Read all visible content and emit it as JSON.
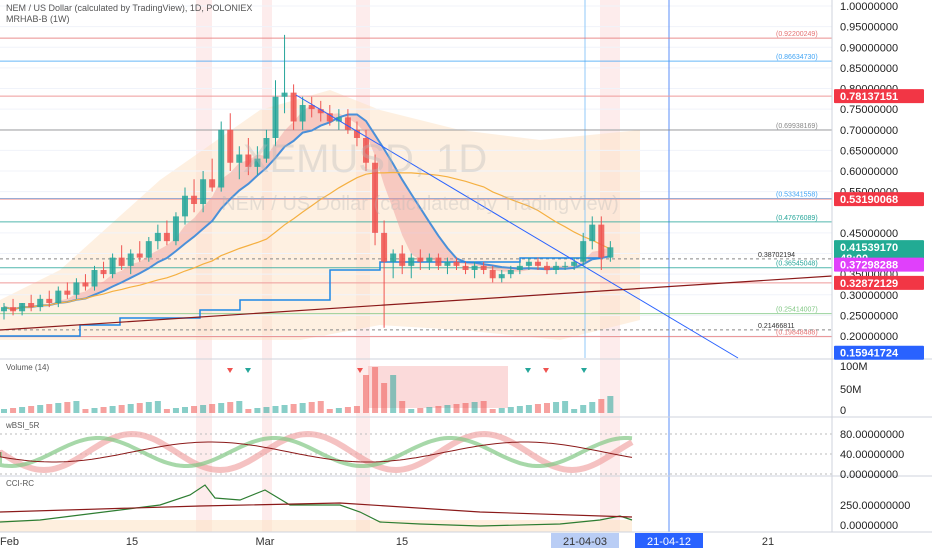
{
  "header": {
    "line1": "NEM / US Dollar (calculated by TradingView), 1D, POLONIEX",
    "line2": "MRHAB-B (1W)"
  },
  "watermark": {
    "symbol": "XEMUSD, 1D",
    "name": "NEM / US Dollar (calculated by TradingView)"
  },
  "colors": {
    "up": "#26a69a",
    "down": "#ef5350",
    "badge_red": "#f23645",
    "badge_teal": "#22ab94",
    "badge_magenta": "#e040fb",
    "badge_blue": "#2962ff",
    "date_badge": "#a9c4ff"
  },
  "chart_data": {
    "type": "candlestick",
    "price_axis_ticks": [
      "1.00000000",
      "0.95000000",
      "0.90000000",
      "0.85000000",
      "0.80000000",
      "0.75000000",
      "0.70000000",
      "0.65000000",
      "0.60000000",
      "0.55000000",
      "0.45000000",
      "0.40000000",
      "0.35000000",
      "0.30000000",
      "0.25000000",
      "0.20000000"
    ],
    "price_tick_values": [
      1.0,
      0.95,
      0.9,
      0.85,
      0.8,
      0.75,
      0.7,
      0.65,
      0.6,
      0.55,
      0.45,
      0.4,
      0.35,
      0.3,
      0.25,
      0.2
    ],
    "ylim": [
      0.15,
      1.0
    ],
    "x_ticks": [
      "Feb",
      "15",
      "Mar",
      "15",
      "21-04-03",
      "21-04-12",
      "21"
    ],
    "price_badges": [
      {
        "label": "0.78137151",
        "value": 0.78137151,
        "color": "#f23645"
      },
      {
        "label": "0.53190068",
        "value": 0.53190068,
        "color": "#f23645"
      },
      {
        "label": "0.41539170",
        "value": 0.4153917,
        "color": "#22ab94"
      },
      {
        "label": "48:00",
        "value": 0.395,
        "color": "#22ab94"
      },
      {
        "label": "0.37298288",
        "value": 0.37298288,
        "color": "#e040fb"
      },
      {
        "label": "0.32872129",
        "value": 0.32872129,
        "color": "#f23645"
      },
      {
        "label": "0.15941724",
        "value": 0.15941724,
        "color": "#2962ff"
      }
    ],
    "fib_levels": [
      {
        "label": "(0.92200249)",
        "value": 0.922,
        "color": "#e57373"
      },
      {
        "label": "(0.86634730)",
        "value": 0.8663,
        "color": "#42a5f5"
      },
      {
        "label": "(0.69938169)",
        "value": 0.6994,
        "color": "#888888"
      },
      {
        "label": "(0.53341558)",
        "value": 0.5334,
        "color": "#42a5f5"
      },
      {
        "label": "(0.47676089)",
        "value": 0.4768,
        "color": "#26a69a"
      },
      {
        "label": "(0.36545048)",
        "value": 0.3655,
        "color": "#26a69a"
      },
      {
        "label": "(0.25414007)",
        "value": 0.2541,
        "color": "#81c784"
      },
      {
        "label": "(0.19848488)",
        "value": 0.1985,
        "color": "#e57373"
      }
    ],
    "inline_levels": [
      {
        "label": "0.38702194",
        "value": 0.387
      },
      {
        "label": "0.21466811",
        "value": 0.2147
      }
    ],
    "candles": [
      [
        0.26,
        0.28,
        0.24,
        0.27
      ],
      [
        0.27,
        0.29,
        0.25,
        0.26
      ],
      [
        0.26,
        0.28,
        0.25,
        0.28
      ],
      [
        0.28,
        0.3,
        0.26,
        0.27
      ],
      [
        0.27,
        0.3,
        0.26,
        0.29
      ],
      [
        0.29,
        0.31,
        0.27,
        0.28
      ],
      [
        0.28,
        0.32,
        0.27,
        0.31
      ],
      [
        0.31,
        0.33,
        0.29,
        0.3
      ],
      [
        0.3,
        0.34,
        0.29,
        0.33
      ],
      [
        0.33,
        0.35,
        0.31,
        0.32
      ],
      [
        0.32,
        0.37,
        0.31,
        0.36
      ],
      [
        0.36,
        0.38,
        0.34,
        0.35
      ],
      [
        0.35,
        0.4,
        0.34,
        0.39
      ],
      [
        0.39,
        0.42,
        0.36,
        0.37
      ],
      [
        0.37,
        0.41,
        0.35,
        0.4
      ],
      [
        0.4,
        0.43,
        0.38,
        0.39
      ],
      [
        0.39,
        0.44,
        0.38,
        0.43
      ],
      [
        0.43,
        0.47,
        0.41,
        0.45
      ],
      [
        0.45,
        0.48,
        0.42,
        0.43
      ],
      [
        0.43,
        0.5,
        0.42,
        0.49
      ],
      [
        0.49,
        0.56,
        0.47,
        0.54
      ],
      [
        0.54,
        0.58,
        0.5,
        0.52
      ],
      [
        0.52,
        0.6,
        0.5,
        0.58
      ],
      [
        0.58,
        0.63,
        0.55,
        0.56
      ],
      [
        0.56,
        0.72,
        0.55,
        0.7
      ],
      [
        0.7,
        0.74,
        0.6,
        0.62
      ],
      [
        0.62,
        0.66,
        0.58,
        0.64
      ],
      [
        0.64,
        0.68,
        0.59,
        0.61
      ],
      [
        0.61,
        0.66,
        0.59,
        0.63
      ],
      [
        0.63,
        0.7,
        0.62,
        0.68
      ],
      [
        0.68,
        0.82,
        0.66,
        0.78
      ],
      [
        0.78,
        0.93,
        0.74,
        0.79
      ],
      [
        0.79,
        0.81,
        0.7,
        0.72
      ],
      [
        0.72,
        0.78,
        0.7,
        0.76
      ],
      [
        0.76,
        0.78,
        0.73,
        0.75
      ],
      [
        0.75,
        0.77,
        0.72,
        0.74
      ],
      [
        0.74,
        0.76,
        0.71,
        0.72
      ],
      [
        0.72,
        0.75,
        0.7,
        0.73
      ],
      [
        0.73,
        0.75,
        0.69,
        0.7
      ],
      [
        0.7,
        0.72,
        0.66,
        0.68
      ],
      [
        0.68,
        0.7,
        0.6,
        0.62
      ],
      [
        0.62,
        0.64,
        0.42,
        0.45
      ],
      [
        0.45,
        0.48,
        0.22,
        0.38
      ],
      [
        0.38,
        0.41,
        0.34,
        0.4
      ],
      [
        0.4,
        0.42,
        0.35,
        0.37
      ],
      [
        0.37,
        0.4,
        0.34,
        0.39
      ],
      [
        0.39,
        0.41,
        0.36,
        0.38
      ],
      [
        0.38,
        0.4,
        0.36,
        0.39
      ],
      [
        0.39,
        0.4,
        0.36,
        0.37
      ],
      [
        0.37,
        0.39,
        0.35,
        0.38
      ],
      [
        0.38,
        0.39,
        0.36,
        0.37
      ],
      [
        0.37,
        0.38,
        0.35,
        0.36
      ],
      [
        0.36,
        0.38,
        0.34,
        0.37
      ],
      [
        0.37,
        0.38,
        0.35,
        0.36
      ],
      [
        0.36,
        0.37,
        0.33,
        0.34
      ],
      [
        0.34,
        0.36,
        0.33,
        0.35
      ],
      [
        0.35,
        0.37,
        0.34,
        0.36
      ],
      [
        0.36,
        0.38,
        0.35,
        0.37
      ],
      [
        0.37,
        0.39,
        0.36,
        0.38
      ],
      [
        0.38,
        0.39,
        0.36,
        0.37
      ],
      [
        0.37,
        0.38,
        0.35,
        0.36
      ],
      [
        0.36,
        0.38,
        0.35,
        0.37
      ],
      [
        0.37,
        0.38,
        0.36,
        0.37
      ],
      [
        0.37,
        0.39,
        0.36,
        0.38
      ],
      [
        0.38,
        0.45,
        0.37,
        0.43
      ],
      [
        0.43,
        0.49,
        0.41,
        0.47
      ],
      [
        0.47,
        0.49,
        0.36,
        0.39
      ],
      [
        0.39,
        0.43,
        0.38,
        0.415
      ]
    ],
    "volume_axis_ticks": [
      "100M",
      "50M",
      "0"
    ],
    "wbsi_axis_ticks": [
      "80.00000000",
      "40.00000000",
      "0.00000000"
    ],
    "cci_axis_ticks": [
      "250.00000000",
      "0.00000000"
    ]
  },
  "panes": {
    "volume_title": "Volume (14)",
    "wbsi_title": "wBSI_5R",
    "cci_title": "CCI-RC"
  }
}
